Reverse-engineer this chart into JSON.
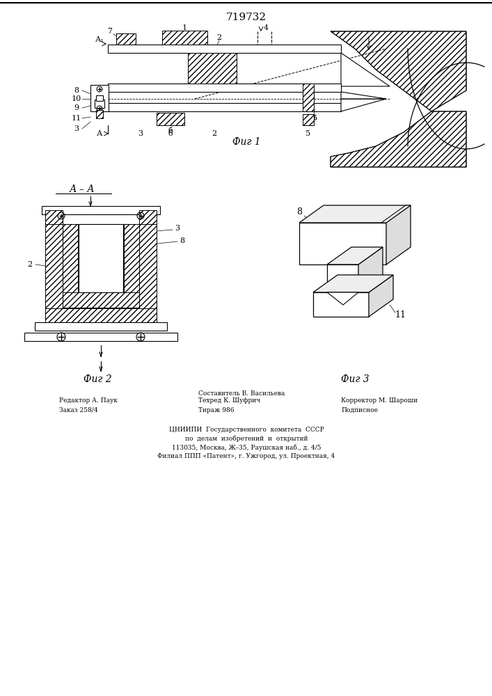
{
  "title": "719732",
  "fig1_label": "Фиг 1",
  "fig2_label": "Фиг 2",
  "fig3_label": "Фиг 3",
  "section_label": "А – А",
  "background_color": "#ffffff",
  "line_color": "#000000",
  "footer_center": [
    "ЦНИИПИ  Государственного  комитета  СССР",
    "по  делам  изобретений  и  открытий",
    "113035, Москва, Ж–35, Раушская наб., д. 4/5",
    "Филиал ППП «Патент», г. Ужгород, ул. Проектная, 4"
  ]
}
